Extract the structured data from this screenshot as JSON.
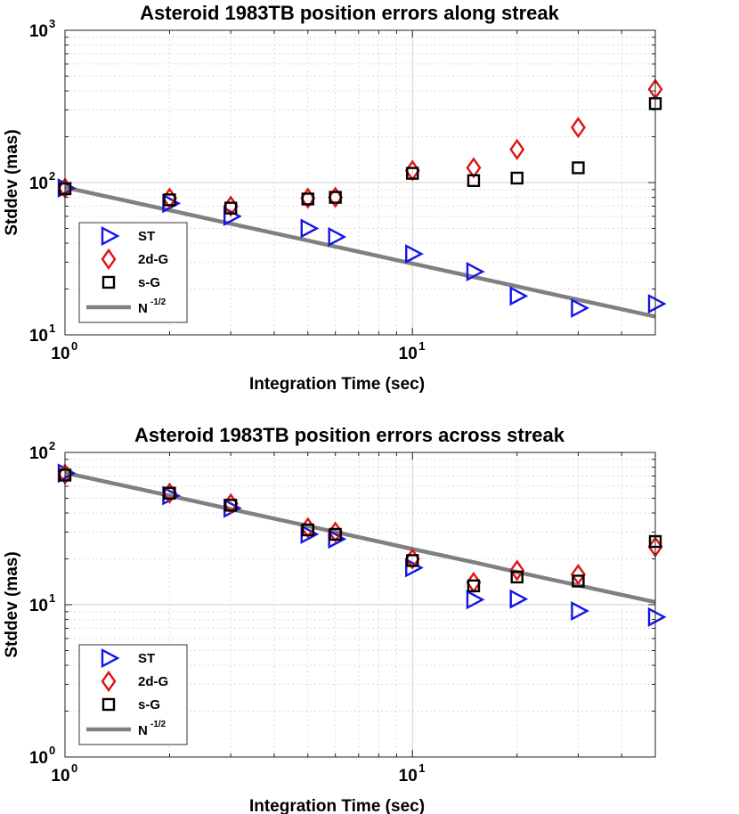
{
  "chart_data": [
    {
      "type": "scatter",
      "title": "Asteroid 1983TB position errors along streak",
      "xlabel": "Integration Time (sec)",
      "ylabel": "Stddev (mas)",
      "xscale": "log",
      "yscale": "log",
      "xlim": [
        1,
        50
      ],
      "ylim": [
        10,
        1000
      ],
      "xticks": [
        {
          "base": "10",
          "exp": "0"
        },
        {
          "base": "10",
          "exp": "1"
        }
      ],
      "yticks": [
        {
          "base": "10",
          "exp": "1"
        },
        {
          "base": "10",
          "exp": "2"
        },
        {
          "base": "10",
          "exp": "3"
        }
      ],
      "grid": true,
      "legend_position": "lower-left",
      "x": [
        1,
        2,
        3,
        5,
        6,
        10,
        15,
        20,
        30,
        50
      ],
      "series": [
        {
          "name": "ST",
          "marker": "triangle-right",
          "color": "#1414e6",
          "values": [
            92,
            73,
            60,
            50,
            44,
            34,
            26,
            18,
            15,
            16
          ]
        },
        {
          "name": "2d-G",
          "marker": "diamond",
          "color": "#e01414",
          "values": [
            92,
            79,
            70,
            79,
            80,
            120,
            125,
            165,
            230,
            410
          ]
        },
        {
          "name": "s-G",
          "marker": "square",
          "color": "#000000",
          "values": [
            91,
            77,
            68,
            78,
            80,
            115,
            103,
            107,
            125,
            330
          ]
        },
        {
          "name": "N",
          "name_sup": "-1/2",
          "type": "line",
          "color": "#808080",
          "values": [
            93,
            65.8,
            53.7,
            41.6,
            38,
            29.4,
            24,
            20.8,
            17,
            13.2
          ]
        }
      ]
    },
    {
      "type": "scatter",
      "title": "Asteroid 1983TB position errors across streak",
      "xlabel": "Integration Time (sec)",
      "ylabel": "Stddev (mas)",
      "xscale": "log",
      "yscale": "log",
      "xlim": [
        1,
        50
      ],
      "ylim": [
        1,
        100
      ],
      "xticks": [
        {
          "base": "10",
          "exp": "0"
        },
        {
          "base": "10",
          "exp": "1"
        }
      ],
      "yticks": [
        {
          "base": "10",
          "exp": "0"
        },
        {
          "base": "10",
          "exp": "1"
        },
        {
          "base": "10",
          "exp": "2"
        }
      ],
      "grid": true,
      "legend_position": "lower-left",
      "x": [
        1,
        2,
        3,
        5,
        6,
        10,
        15,
        20,
        30,
        50
      ],
      "series": [
        {
          "name": "ST",
          "marker": "triangle-right",
          "color": "#1414e6",
          "values": [
            73,
            52,
            43,
            29,
            27,
            17.5,
            10.8,
            10.9,
            9.1,
            8.3
          ]
        },
        {
          "name": "2d-G",
          "marker": "diamond",
          "color": "#e01414",
          "values": [
            72,
            54,
            46,
            32,
            30,
            20,
            14,
            16.8,
            15.8,
            24
          ]
        },
        {
          "name": "s-G",
          "marker": "square",
          "color": "#000000",
          "values": [
            71,
            54,
            45,
            31,
            29,
            19.5,
            13.3,
            15.2,
            14.3,
            26
          ]
        },
        {
          "name": "N",
          "name_sup": "-1/2",
          "type": "line",
          "color": "#808080",
          "values": [
            73.5,
            52,
            42.4,
            32.9,
            30,
            23.2,
            19,
            16.4,
            13.4,
            10.4
          ]
        }
      ]
    }
  ]
}
